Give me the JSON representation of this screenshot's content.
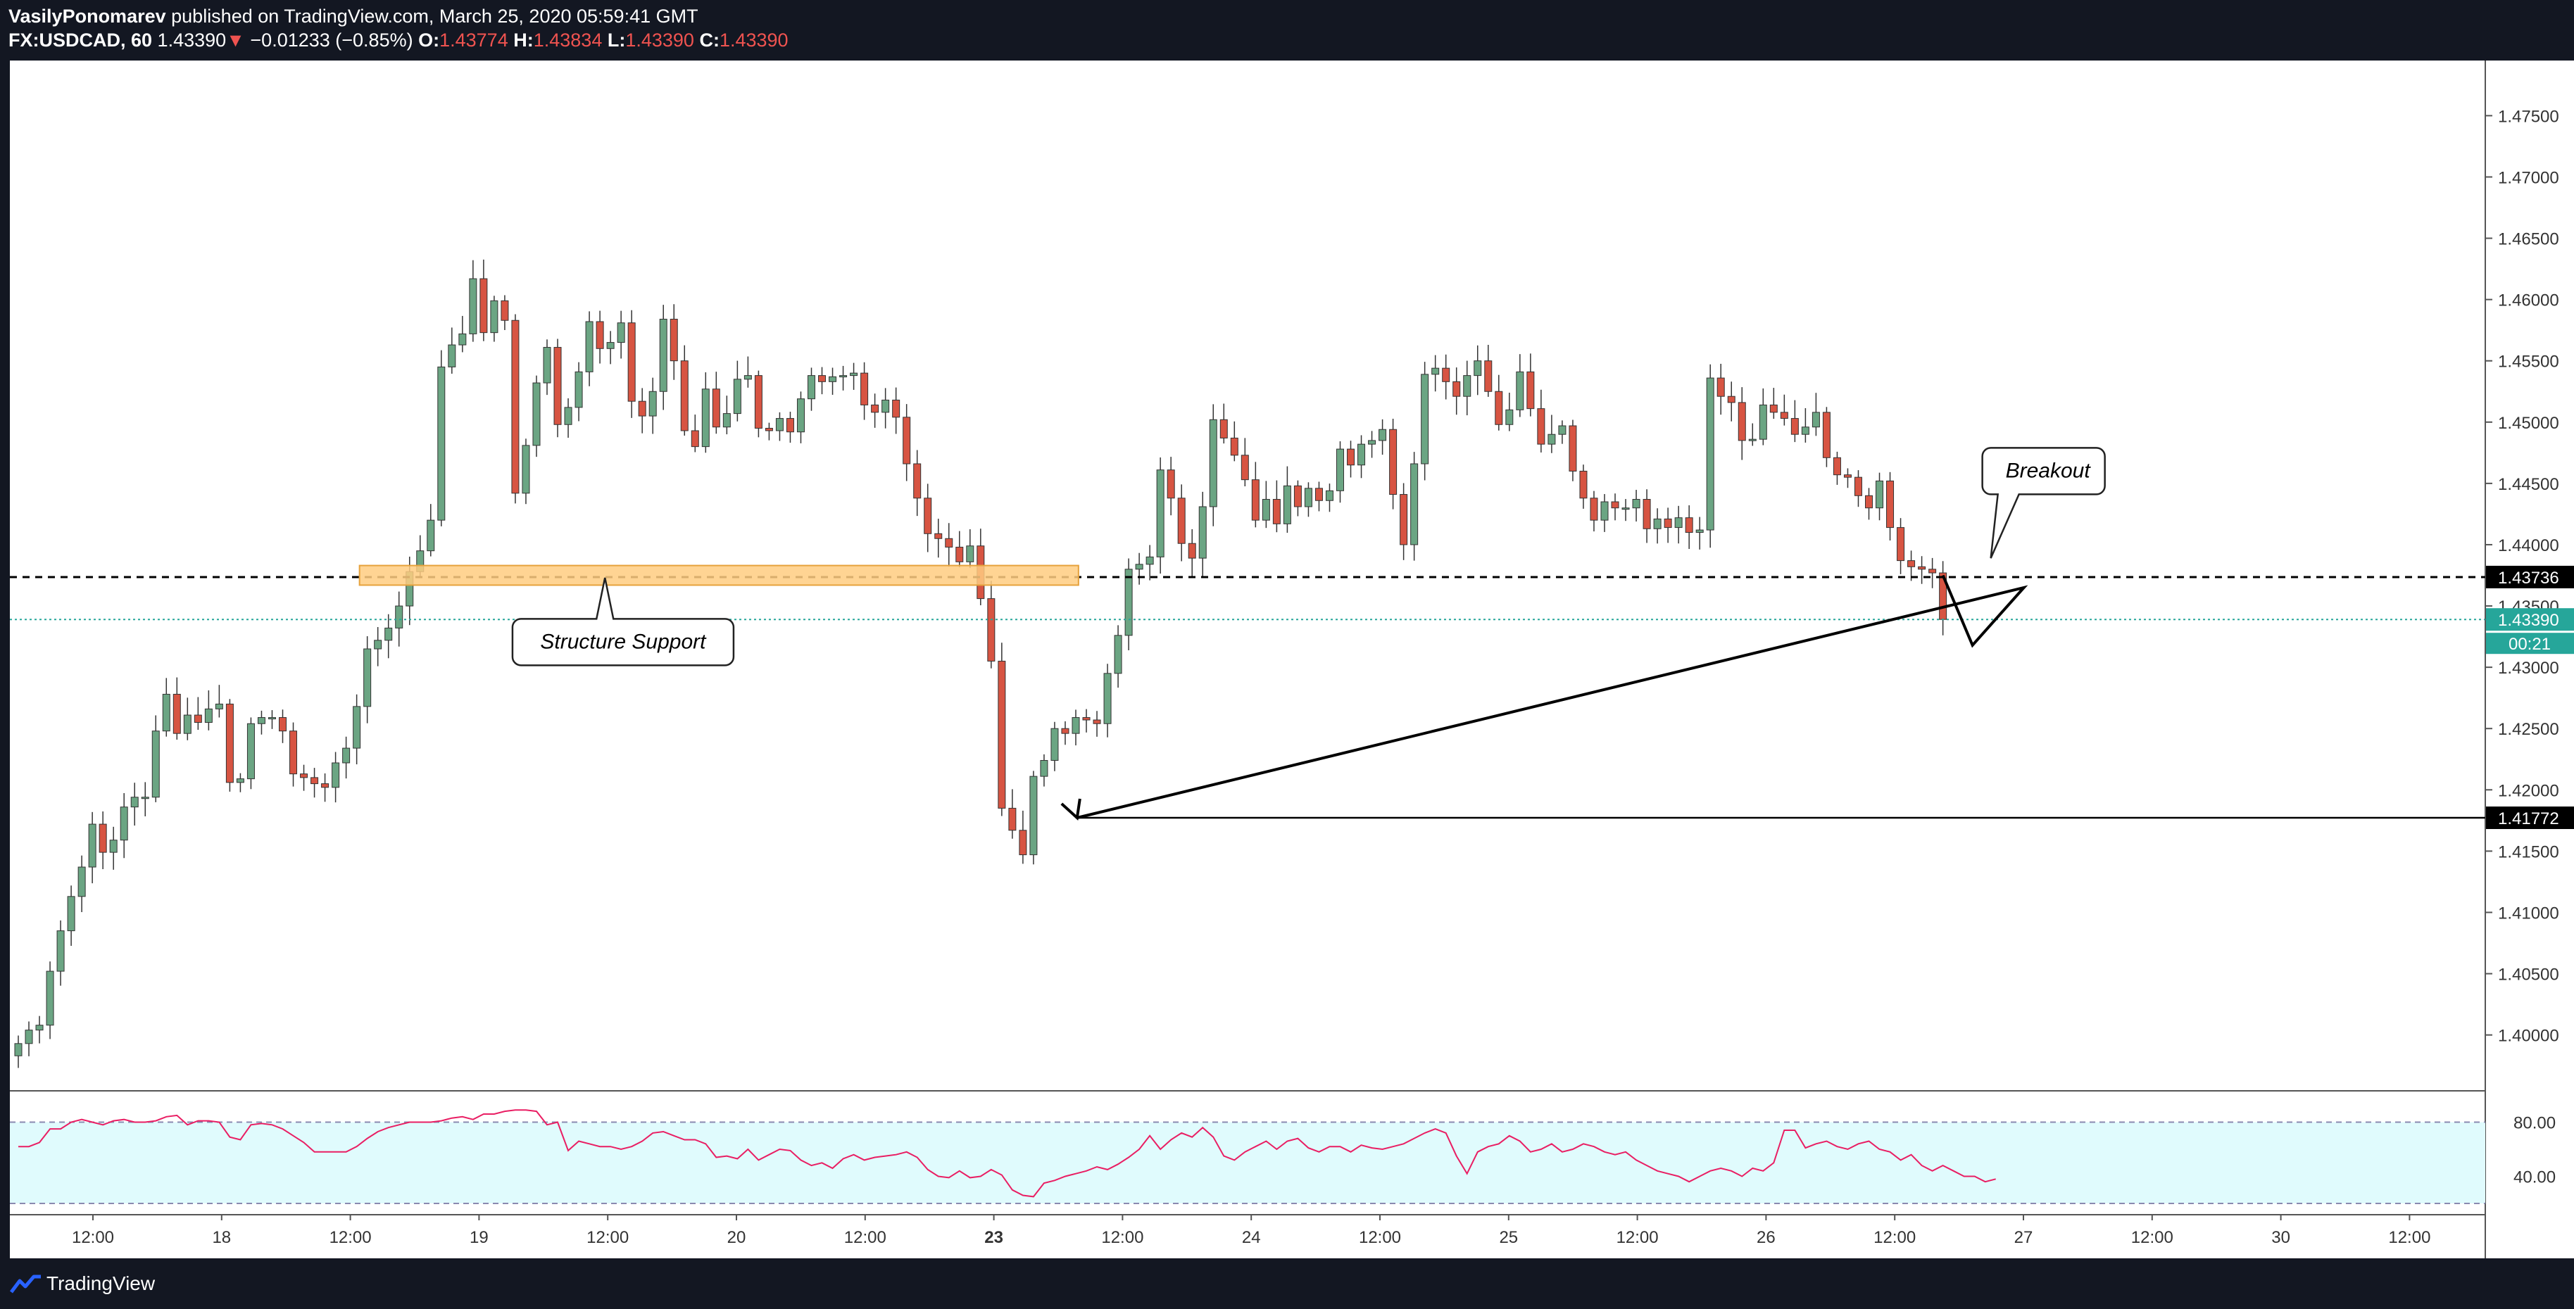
{
  "header": {
    "author": "VasilyPonomarev",
    "published_text": "published on TradingView.com, March 25, 2020 05:59:41 GMT",
    "symbol": "FX:USDCAD, 60",
    "last_price": "1.43390",
    "change_arrow": "▼",
    "change": "−0.01233 (−0.85%)",
    "open_label": "O:",
    "open": "1.43774",
    "high_label": "H:",
    "high": "1.43834",
    "low_label": "L:",
    "low": "1.43390",
    "close_label": "C:",
    "close": "1.43390"
  },
  "colors": {
    "up": "#6ba583",
    "down": "#d75442",
    "support_zone": "#ffcc80",
    "rsi_line": "#e91e63",
    "rsi_band": "#e0fbfd",
    "price_line": "#26a69a",
    "background_dark": "#131722"
  },
  "chart_data": {
    "type": "candlestick",
    "timeframe": "60",
    "y_ticks": [
      "1.47500",
      "1.47000",
      "1.46500",
      "1.46000",
      "1.45500",
      "1.45000",
      "1.44500",
      "1.44000",
      "1.43500",
      "1.43000",
      "1.42500",
      "1.42000",
      "1.41500",
      "1.41000",
      "1.40500",
      "1.40000"
    ],
    "ylim": [
      1.3955,
      1.4795
    ],
    "x_ticks": [
      "12:00",
      "18",
      "12:00",
      "19",
      "12:00",
      "20",
      "12:00",
      "23",
      "12:00",
      "24",
      "12:00",
      "25",
      "12:00",
      "26",
      "12:00",
      "27",
      "12:00",
      "30",
      "12:00"
    ],
    "x_tick_bold": [
      false,
      false,
      false,
      false,
      false,
      false,
      false,
      true,
      false,
      false,
      false,
      false,
      false,
      false,
      false,
      false,
      false,
      false,
      false
    ],
    "closes": [
      1.3993,
      1.4004,
      1.4008,
      1.4052,
      1.4085,
      1.4113,
      1.4137,
      1.4172,
      1.4149,
      1.4159,
      1.4186,
      1.4194,
      1.4194,
      1.4248,
      1.4278,
      1.4246,
      1.4261,
      1.4255,
      1.4266,
      1.427,
      1.4206,
      1.4209,
      1.4254,
      1.4259,
      1.4259,
      1.4248,
      1.4213,
      1.421,
      1.4205,
      1.4202,
      1.4222,
      1.4234,
      1.4268,
      1.4315,
      1.4322,
      1.4332,
      1.435,
      1.4378,
      1.4395,
      1.442,
      1.4545,
      1.4563,
      1.4572,
      1.4617,
      1.4573,
      1.4599,
      1.4583,
      1.4442,
      1.4481,
      1.4532,
      1.4561,
      1.4498,
      1.4512,
      1.4541,
      1.4582,
      1.456,
      1.4565,
      1.4581,
      1.4517,
      1.4505,
      1.4525,
      1.4584,
      1.455,
      1.4493,
      1.448,
      1.4527,
      1.4496,
      1.4507,
      1.4535,
      1.4538,
      1.4495,
      1.4493,
      1.4503,
      1.4492,
      1.4519,
      1.4538,
      1.4533,
      1.4537,
      1.4538,
      1.454,
      1.4514,
      1.4508,
      1.4518,
      1.4504,
      1.4466,
      1.4438,
      1.4409,
      1.4405,
      1.4398,
      1.4386,
      1.4399,
      1.4356,
      1.4305,
      1.4185,
      1.4167,
      1.4147,
      1.4211,
      1.4224,
      1.425,
      1.4246,
      1.4259,
      1.4257,
      1.4254,
      1.4295,
      1.4326,
      1.438,
      1.4384,
      1.439,
      1.4461,
      1.4438,
      1.4401,
      1.4389,
      1.4431,
      1.4502,
      1.4487,
      1.4473,
      1.4453,
      1.442,
      1.4437,
      1.4417,
      1.4448,
      1.4431,
      1.4446,
      1.4436,
      1.4444,
      1.4478,
      1.4465,
      1.4482,
      1.4485,
      1.4494,
      1.4441,
      1.44,
      1.4466,
      1.4539,
      1.4544,
      1.4533,
      1.4521,
      1.4538,
      1.455,
      1.4525,
      1.4498,
      1.451,
      1.4541,
      1.4511,
      1.4482,
      1.449,
      1.4497,
      1.446,
      1.4438,
      1.442,
      1.4435,
      1.443,
      1.443,
      1.4437,
      1.4413,
      1.4421,
      1.4414,
      1.4422,
      1.441,
      1.4412,
      1.4536,
      1.4521,
      1.4516,
      1.4485,
      1.4486,
      1.4514,
      1.4508,
      1.4503,
      1.449,
      1.4496,
      1.4508,
      1.4471,
      1.4457,
      1.4455,
      1.444,
      1.443,
      1.4452,
      1.4414,
      1.4387,
      1.4382,
      1.438,
      1.4377,
      1.4339
    ],
    "last_price_label": "1.43390",
    "countdown_label": "00:21",
    "resistance_line_label": "1.43736",
    "target_label": "1.41772",
    "annotations": {
      "breakout": "Breakout",
      "structure_support": "Structure Support"
    },
    "rsi": {
      "levels": [
        "80.00",
        "40.00"
      ],
      "values": [
        62,
        62,
        65,
        75,
        75,
        80,
        82,
        80,
        78,
        81,
        82,
        80,
        80,
        81,
        84,
        85,
        78,
        81,
        81,
        80,
        69,
        67,
        78,
        79,
        78,
        75,
        70,
        65,
        58,
        58,
        58,
        58,
        62,
        68,
        73,
        76,
        78,
        80,
        80,
        80,
        81,
        83,
        84,
        82,
        86,
        86,
        88,
        89,
        89,
        88,
        78,
        80,
        59,
        66,
        64,
        62,
        62,
        60,
        62,
        66,
        72,
        73,
        70,
        67,
        67,
        64,
        54,
        55,
        53,
        60,
        52,
        56,
        60,
        59,
        52,
        48,
        50,
        46,
        53,
        56,
        52,
        54,
        55,
        56,
        58,
        54,
        45,
        40,
        39,
        44,
        39,
        40,
        45,
        41,
        30,
        26,
        25,
        35,
        37,
        40,
        42,
        44,
        47,
        45,
        49,
        54,
        60,
        70,
        60,
        67,
        72,
        69,
        76,
        69,
        55,
        52,
        58,
        62,
        66,
        60,
        66,
        68,
        61,
        58,
        62,
        62,
        58,
        63,
        61,
        60,
        62,
        64,
        68,
        72,
        75,
        72,
        55,
        42,
        58,
        62,
        64,
        70,
        66,
        58,
        60,
        64,
        58,
        60,
        64,
        62,
        58,
        56,
        58,
        52,
        48,
        44,
        42,
        40,
        36,
        40,
        44,
        46,
        44,
        40,
        46,
        44,
        50,
        74,
        74,
        61,
        64,
        66,
        62,
        60,
        64,
        66,
        60,
        58,
        52,
        56,
        48,
        44,
        48,
        44,
        40,
        40,
        36,
        38
      ]
    }
  },
  "footer": {
    "brand": "TradingView"
  }
}
